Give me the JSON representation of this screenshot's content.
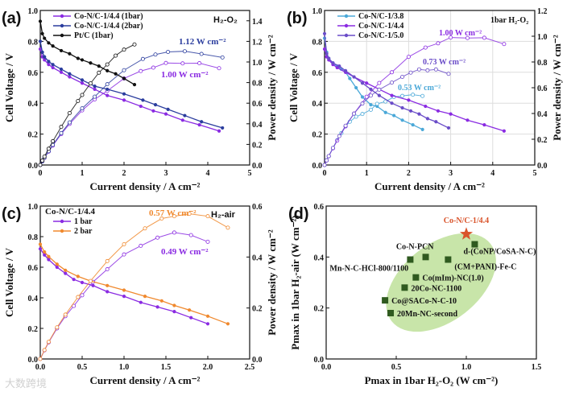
{
  "watermark": "大数跨境",
  "chart_data": [
    {
      "panel": "(a)",
      "type": "line",
      "xlabel": "Current density / A cm⁻²",
      "ylabel": "Cell Voltage / V",
      "y2label": "Power density / W cm⁻²",
      "xlim": [
        0,
        5
      ],
      "ylim": [
        0,
        1.0
      ],
      "y2lim": [
        0,
        1.5
      ],
      "xticks": [
        0,
        1,
        2,
        3,
        4,
        5
      ],
      "yticks": [
        0.0,
        0.2,
        0.4,
        0.6,
        0.8,
        1.0
      ],
      "y2ticks": [
        0.0,
        0.2,
        0.4,
        0.6,
        0.8,
        1.0,
        1.2,
        1.4
      ],
      "condition": "H₂-O₂",
      "grid": false,
      "legend": "top-left",
      "power_note": "open symbols: power density = current × voltage",
      "series": [
        {
          "name": "Co-N/C-1/4.4 (1bar)",
          "color": "#8a2be2",
          "x": [
            0,
            0.05,
            0.1,
            0.2,
            0.3,
            0.5,
            0.7,
            1.0,
            1.3,
            1.6,
            2.0,
            2.4,
            2.7,
            3.0,
            3.4,
            3.8,
            4.27
          ],
          "voltage": [
            0.75,
            0.7,
            0.68,
            0.65,
            0.63,
            0.6,
            0.57,
            0.53,
            0.49,
            0.45,
            0.42,
            0.38,
            0.35,
            0.33,
            0.29,
            0.26,
            0.22
          ]
        },
        {
          "name": "Co-N/C-1/4.4 (2bar)",
          "color": "#2b3d9e",
          "x": [
            0,
            0.05,
            0.1,
            0.2,
            0.3,
            0.5,
            0.7,
            1.0,
            1.3,
            1.6,
            2.0,
            2.45,
            2.75,
            3.05,
            3.45,
            3.85,
            4.35
          ],
          "voltage": [
            0.8,
            0.73,
            0.7,
            0.67,
            0.65,
            0.62,
            0.59,
            0.55,
            0.51,
            0.49,
            0.46,
            0.42,
            0.39,
            0.36,
            0.32,
            0.28,
            0.24
          ]
        },
        {
          "name": "Pt/C (1bar)",
          "color": "#111111",
          "x": [
            0,
            0.05,
            0.1,
            0.2,
            0.3,
            0.5,
            0.7,
            0.9,
            1.0,
            1.2,
            1.4,
            1.6,
            1.8,
            2.0,
            2.25
          ],
          "voltage": [
            0.93,
            0.85,
            0.82,
            0.79,
            0.77,
            0.74,
            0.72,
            0.69,
            0.68,
            0.66,
            0.64,
            0.61,
            0.59,
            0.56,
            0.52
          ]
        }
      ],
      "annotations": [
        {
          "text": "1.12 W cm⁻²",
          "color": "#2b3d9e"
        },
        {
          "text": "1.00 W cm⁻²",
          "color": "#8a2be2"
        }
      ]
    },
    {
      "panel": "(b)",
      "type": "line",
      "xlabel": "Current density / A cm⁻²",
      "ylabel": "Cell Voltage / V",
      "y2label": "Power density / W cm⁻²",
      "xlim": [
        0,
        5
      ],
      "ylim": [
        0,
        1.0
      ],
      "y2lim": [
        0,
        1.2
      ],
      "xticks": [
        0,
        1,
        2,
        3,
        4,
        5
      ],
      "yticks": [
        0.0,
        0.2,
        0.4,
        0.6,
        0.8,
        1.0
      ],
      "y2ticks": [
        0.0,
        0.2,
        0.4,
        0.6,
        0.8,
        1.0,
        1.2
      ],
      "condition": "1bar H₂-O₂",
      "grid": true,
      "legend": "top-left",
      "series": [
        {
          "name": "Co-N/C-1/3.8",
          "color": "#4aa8d8",
          "x": [
            0,
            0.05,
            0.1,
            0.2,
            0.3,
            0.4,
            0.5,
            0.6,
            0.75,
            0.9,
            1.1,
            1.25,
            1.45,
            1.65,
            1.85,
            2.1,
            2.33
          ],
          "voltage": [
            0.82,
            0.73,
            0.69,
            0.66,
            0.64,
            0.62,
            0.6,
            0.56,
            0.5,
            0.44,
            0.39,
            0.38,
            0.34,
            0.32,
            0.29,
            0.26,
            0.23
          ]
        },
        {
          "name": "Co-N/C-1/4.4",
          "color": "#8a2be2",
          "x": [
            0,
            0.05,
            0.1,
            0.2,
            0.3,
            0.5,
            0.7,
            1.0,
            1.3,
            1.6,
            2.0,
            2.4,
            2.7,
            3.0,
            3.4,
            3.8,
            4.27
          ],
          "voltage": [
            0.75,
            0.7,
            0.68,
            0.65,
            0.63,
            0.6,
            0.57,
            0.53,
            0.49,
            0.45,
            0.42,
            0.38,
            0.35,
            0.33,
            0.29,
            0.26,
            0.22
          ]
        },
        {
          "name": "Co-N/C-1/5.0",
          "color": "#6a4cc8",
          "x": [
            0,
            0.05,
            0.1,
            0.2,
            0.35,
            0.5,
            0.7,
            0.9,
            1.1,
            1.3,
            1.6,
            1.85,
            2.05,
            2.25,
            2.45,
            2.65,
            2.95
          ],
          "voltage": [
            0.85,
            0.72,
            0.69,
            0.66,
            0.64,
            0.61,
            0.57,
            0.53,
            0.49,
            0.45,
            0.4,
            0.37,
            0.35,
            0.33,
            0.3,
            0.28,
            0.24
          ]
        }
      ],
      "annotations": [
        {
          "text": "1.00 W cm⁻²",
          "color": "#8a2be2"
        },
        {
          "text": "0.73 W cm⁻²",
          "color": "#6a4cc8"
        },
        {
          "text": "0.53 W cm⁻²",
          "color": "#4aa8d8"
        }
      ]
    },
    {
      "panel": "(c)",
      "type": "line",
      "xlabel": "Current density / A cm⁻²",
      "ylabel": "Cell Voltage / V",
      "y2label": "Power density / W cm⁻²",
      "xlim": [
        0,
        2.5
      ],
      "ylim": [
        0,
        1.0
      ],
      "y2lim": [
        0,
        0.6
      ],
      "xticks": [
        0.0,
        0.5,
        1.0,
        1.5,
        2.0,
        2.5
      ],
      "yticks": [
        0.0,
        0.2,
        0.4,
        0.6,
        0.8,
        1.0
      ],
      "y2ticks": [
        0.0,
        0.2,
        0.4,
        0.6
      ],
      "condition": "H₂-air",
      "legend_title": "Co-N/C-1/4.4",
      "grid": false,
      "legend": "top-left",
      "series": [
        {
          "name": "1 bar",
          "color": "#8a2be2",
          "x": [
            0,
            0.05,
            0.1,
            0.2,
            0.3,
            0.4,
            0.5,
            0.63,
            0.8,
            1.0,
            1.2,
            1.4,
            1.6,
            1.8,
            2.0
          ],
          "voltage": [
            0.72,
            0.68,
            0.65,
            0.6,
            0.56,
            0.52,
            0.5,
            0.48,
            0.44,
            0.41,
            0.37,
            0.34,
            0.31,
            0.27,
            0.23
          ]
        },
        {
          "name": "2 bar",
          "color": "#f0892e",
          "x": [
            0,
            0.05,
            0.1,
            0.2,
            0.3,
            0.45,
            0.6,
            0.8,
            1.0,
            1.25,
            1.45,
            1.6,
            1.78,
            2.0,
            2.24
          ],
          "voltage": [
            0.75,
            0.7,
            0.67,
            0.62,
            0.58,
            0.54,
            0.51,
            0.48,
            0.45,
            0.41,
            0.38,
            0.35,
            0.32,
            0.28,
            0.23
          ]
        }
      ],
      "annotations": [
        {
          "text": "0.57 W cm⁻²",
          "color": "#f0892e"
        },
        {
          "text": "0.49 W cm⁻²",
          "color": "#8a2be2"
        }
      ]
    },
    {
      "panel": "(d)",
      "type": "scatter",
      "xlabel": "Pmax in 1bar H₂-O₂ (W cm⁻²)",
      "ylabel": "Pmax in 1bar H₂-air (W cm⁻²)",
      "xlim": [
        0,
        1.5
      ],
      "ylim": [
        0,
        0.6
      ],
      "xticks": [
        0.0,
        0.5,
        1.0,
        1.5
      ],
      "yticks": [
        0.0,
        0.2,
        0.4,
        0.6
      ],
      "grid": false,
      "highlight": {
        "name": "Co-N/C-1/4.4",
        "x": 1.0,
        "y": 0.49,
        "color": "#d9532a"
      },
      "points": [
        {
          "name": "Mn-N-C-HCl-800/1100",
          "x": 0.6,
          "y": 0.39
        },
        {
          "name": "Co-N-PCN",
          "x": 0.71,
          "y": 0.4
        },
        {
          "name": "(CM+PANI)-Fe-C",
          "x": 0.87,
          "y": 0.39
        },
        {
          "name": "d-(CoNP/CoSA-N-C)",
          "x": 1.06,
          "y": 0.45
        },
        {
          "name": "Co(mIm)-NC(1.0)",
          "x": 0.64,
          "y": 0.32
        },
        {
          "name": "20Co-NC-1100",
          "x": 0.56,
          "y": 0.28
        },
        {
          "name": "Co@SACo-N-C-10",
          "x": 0.42,
          "y": 0.23
        },
        {
          "name": "20Mn-NC-second",
          "x": 0.46,
          "y": 0.18
        }
      ],
      "point_color": "#2f5a1f",
      "ellipse_color": "#b5dc8c"
    }
  ]
}
